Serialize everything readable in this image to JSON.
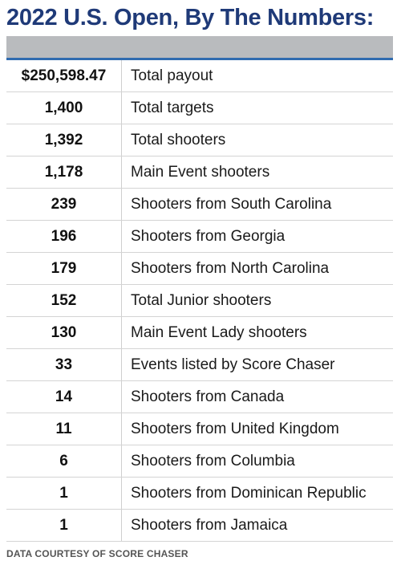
{
  "title": "2022 U.S. Open, By The Numbers:",
  "rows": [
    {
      "value": "$250,598.47",
      "label": "Total payout"
    },
    {
      "value": "1,400",
      "label": "Total targets"
    },
    {
      "value": "1,392",
      "label": "Total shooters"
    },
    {
      "value": "1,178",
      "label": "Main Event shooters"
    },
    {
      "value": "239",
      "label": "Shooters from South Carolina"
    },
    {
      "value": "196",
      "label": "Shooters from Georgia"
    },
    {
      "value": "179",
      "label": "Shooters from North Carolina"
    },
    {
      "value": "152",
      "label": "Total Junior shooters"
    },
    {
      "value": "130",
      "label": "Main Event Lady shooters"
    },
    {
      "value": "33",
      "label": "Events listed by Score Chaser"
    },
    {
      "value": "14",
      "label": "Shooters from Canada"
    },
    {
      "value": "11",
      "label": "Shooters from United Kingdom"
    },
    {
      "value": "6",
      "label": "Shooters from Columbia"
    },
    {
      "value": "1",
      "label": "Shooters from Dominican Republic"
    },
    {
      "value": "1",
      "label": "Shooters from Jamaica"
    }
  ],
  "footer": "DATA COURTESY OF SCORE CHASER",
  "colors": {
    "title": "#1f3a78",
    "header_bar": "#b9bbbe",
    "header_rule": "#2f6bb0"
  }
}
